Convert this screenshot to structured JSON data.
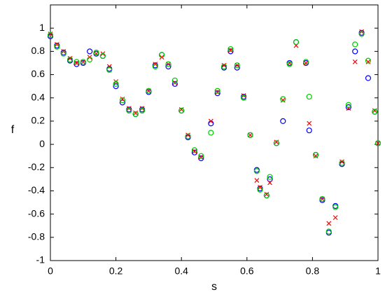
{
  "chart_data": {
    "type": "scatter",
    "xlabel": "s",
    "ylabel": "f",
    "x": [
      0,
      0.02,
      0.04,
      0.06,
      0.08,
      0.1,
      0.12,
      0.14,
      0.16,
      0.18,
      0.2,
      0.22,
      0.24,
      0.26,
      0.28,
      0.3,
      0.32,
      0.34,
      0.36,
      0.38,
      0.4,
      0.42,
      0.44,
      0.46,
      0.49,
      0.51,
      0.53,
      0.55,
      0.57,
      0.59,
      0.61,
      0.63,
      0.64,
      0.66,
      0.67,
      0.69,
      0.71,
      0.73,
      0.75,
      0.78,
      0.79,
      0.81,
      0.83,
      0.85,
      0.87,
      0.89,
      0.91,
      0.93,
      0.95,
      0.97,
      0.99,
      1
    ],
    "series": [
      {
        "color": "#0000ff",
        "marker": "o",
        "values": [
          0.93,
          0.85,
          0.79,
          0.72,
          0.69,
          0.7,
          0.8,
          0.78,
          0.76,
          0.65,
          0.5,
          0.36,
          0.3,
          0.26,
          0.3,
          0.45,
          0.68,
          0.77,
          0.67,
          0.52,
          0.29,
          0.06,
          -0.07,
          -0.12,
          0.18,
          0.44,
          0.66,
          0.8,
          0.66,
          0.41,
          0.08,
          -0.22,
          -0.38,
          -0.44,
          -0.3,
          0.01,
          0.2,
          0.7,
          0.88,
          0.7,
          0.12,
          -0.09,
          -0.48,
          -0.76,
          -0.53,
          -0.17,
          0.32,
          0.8,
          0.96,
          0.57,
          0.28,
          0.01
        ]
      },
      {
        "color": "#ff0000",
        "marker": "x",
        "values": [
          0.95,
          0.86,
          0.8,
          0.74,
          0.7,
          0.71,
          0.75,
          0.78,
          0.78,
          0.67,
          0.54,
          0.39,
          0.31,
          0.27,
          0.31,
          0.46,
          0.69,
          0.75,
          0.69,
          0.53,
          0.3,
          0.08,
          -0.06,
          -0.11,
          0.2,
          0.45,
          0.68,
          0.81,
          0.68,
          0.42,
          0.08,
          -0.31,
          -0.37,
          -0.43,
          -0.33,
          0.02,
          0.38,
          0.7,
          0.85,
          0.7,
          0.18,
          -0.1,
          -0.47,
          -0.68,
          -0.63,
          -0.15,
          0.31,
          0.71,
          0.97,
          0.71,
          0.29,
          0.01
        ]
      },
      {
        "color": "#00cc00",
        "marker": "o",
        "values": [
          0.94,
          0.84,
          0.78,
          0.73,
          0.71,
          0.71,
          0.73,
          0.79,
          0.76,
          0.64,
          0.52,
          0.38,
          0.29,
          0.26,
          0.29,
          0.46,
          0.67,
          0.77,
          0.69,
          0.55,
          0.29,
          0.07,
          -0.05,
          -0.1,
          0.1,
          0.46,
          0.67,
          0.82,
          0.68,
          0.4,
          0.08,
          -0.23,
          -0.39,
          -0.44,
          -0.28,
          0.01,
          0.39,
          0.69,
          0.88,
          0.71,
          0.41,
          -0.09,
          -0.47,
          -0.75,
          -0.54,
          -0.16,
          0.34,
          0.86,
          0.95,
          0.72,
          0.28,
          0.01
        ]
      }
    ],
    "xlim": [
      0,
      1
    ],
    "xticks": [
      0,
      0.2,
      0.4,
      0.6,
      0.8,
      1
    ],
    "ylim": [
      -1,
      1.2
    ],
    "yticks": [
      -1,
      -0.8,
      -0.6,
      -0.4,
      -0.2,
      0,
      0.2,
      0.4,
      0.6,
      0.8,
      1
    ],
    "grid": false
  }
}
